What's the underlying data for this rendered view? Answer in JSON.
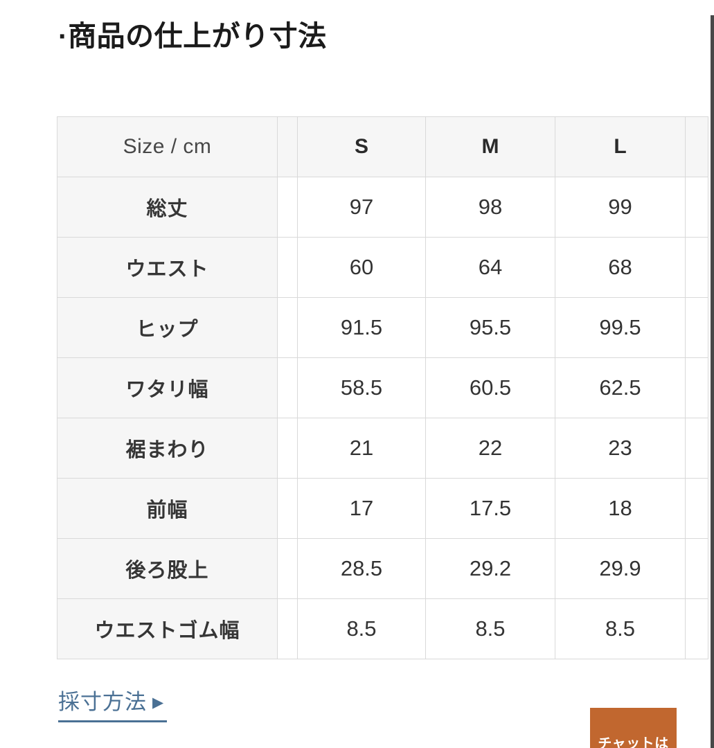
{
  "page": {
    "title": "·商品の仕上がり寸法"
  },
  "size_table": {
    "corner_label": "Size / cm",
    "size_headers": [
      "S",
      "M",
      "L"
    ],
    "rows": [
      {
        "label": "総丈",
        "values": [
          "97",
          "98",
          "99"
        ]
      },
      {
        "label": "ウエスト",
        "values": [
          "60",
          "64",
          "68"
        ]
      },
      {
        "label": "ヒップ",
        "values": [
          "91.5",
          "95.5",
          "99.5"
        ]
      },
      {
        "label": "ワタリ幅",
        "values": [
          "58.5",
          "60.5",
          "62.5"
        ]
      },
      {
        "label": "裾まわり",
        "values": [
          "21",
          "22",
          "23"
        ]
      },
      {
        "label": "前幅",
        "values": [
          "17",
          "17.5",
          "18"
        ]
      },
      {
        "label": "後ろ股上",
        "values": [
          "28.5",
          "29.2",
          "29.9"
        ]
      },
      {
        "label": "ウエストゴム幅",
        "values": [
          "8.5",
          "8.5",
          "8.5"
        ]
      }
    ]
  },
  "measure_link": {
    "label": "採寸方法",
    "arrow": "▶"
  },
  "chat_widget": {
    "label": "チャットは"
  },
  "colors": {
    "link": "#4a7094",
    "chat_bg": "#c1672f",
    "cell_shade": "#f6f6f6",
    "table_border": "#d9d9d9",
    "edge_bar": "#484848",
    "title_text": "#1b1b1b"
  }
}
